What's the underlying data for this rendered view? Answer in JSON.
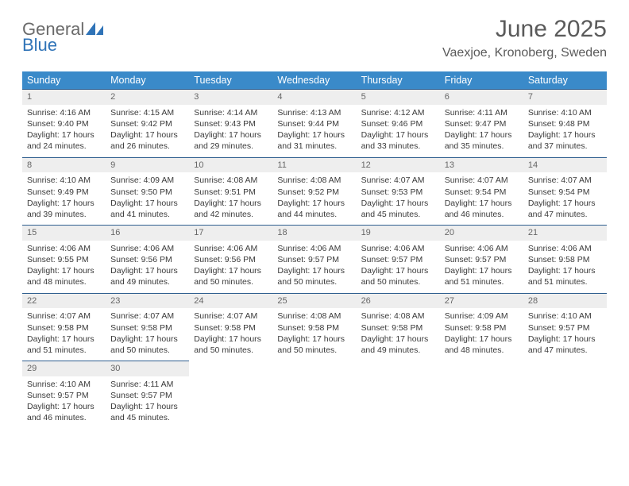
{
  "logo": {
    "text_general": "General",
    "text_blue": "Blue"
  },
  "header": {
    "month_title": "June 2025",
    "location": "Vaexjoe, Kronoberg, Sweden"
  },
  "calendar": {
    "day_names": [
      "Sunday",
      "Monday",
      "Tuesday",
      "Wednesday",
      "Thursday",
      "Friday",
      "Saturday"
    ],
    "header_bg": "#3a8ac9",
    "header_fg": "#ffffff",
    "daynum_bg": "#eeeeee",
    "daynum_border": "#2f5f8f",
    "weeks": [
      [
        {
          "n": "1",
          "sr": "Sunrise: 4:16 AM",
          "ss": "Sunset: 9:40 PM",
          "d1": "Daylight: 17 hours",
          "d2": "and 24 minutes."
        },
        {
          "n": "2",
          "sr": "Sunrise: 4:15 AM",
          "ss": "Sunset: 9:42 PM",
          "d1": "Daylight: 17 hours",
          "d2": "and 26 minutes."
        },
        {
          "n": "3",
          "sr": "Sunrise: 4:14 AM",
          "ss": "Sunset: 9:43 PM",
          "d1": "Daylight: 17 hours",
          "d2": "and 29 minutes."
        },
        {
          "n": "4",
          "sr": "Sunrise: 4:13 AM",
          "ss": "Sunset: 9:44 PM",
          "d1": "Daylight: 17 hours",
          "d2": "and 31 minutes."
        },
        {
          "n": "5",
          "sr": "Sunrise: 4:12 AM",
          "ss": "Sunset: 9:46 PM",
          "d1": "Daylight: 17 hours",
          "d2": "and 33 minutes."
        },
        {
          "n": "6",
          "sr": "Sunrise: 4:11 AM",
          "ss": "Sunset: 9:47 PM",
          "d1": "Daylight: 17 hours",
          "d2": "and 35 minutes."
        },
        {
          "n": "7",
          "sr": "Sunrise: 4:10 AM",
          "ss": "Sunset: 9:48 PM",
          "d1": "Daylight: 17 hours",
          "d2": "and 37 minutes."
        }
      ],
      [
        {
          "n": "8",
          "sr": "Sunrise: 4:10 AM",
          "ss": "Sunset: 9:49 PM",
          "d1": "Daylight: 17 hours",
          "d2": "and 39 minutes."
        },
        {
          "n": "9",
          "sr": "Sunrise: 4:09 AM",
          "ss": "Sunset: 9:50 PM",
          "d1": "Daylight: 17 hours",
          "d2": "and 41 minutes."
        },
        {
          "n": "10",
          "sr": "Sunrise: 4:08 AM",
          "ss": "Sunset: 9:51 PM",
          "d1": "Daylight: 17 hours",
          "d2": "and 42 minutes."
        },
        {
          "n": "11",
          "sr": "Sunrise: 4:08 AM",
          "ss": "Sunset: 9:52 PM",
          "d1": "Daylight: 17 hours",
          "d2": "and 44 minutes."
        },
        {
          "n": "12",
          "sr": "Sunrise: 4:07 AM",
          "ss": "Sunset: 9:53 PM",
          "d1": "Daylight: 17 hours",
          "d2": "and 45 minutes."
        },
        {
          "n": "13",
          "sr": "Sunrise: 4:07 AM",
          "ss": "Sunset: 9:54 PM",
          "d1": "Daylight: 17 hours",
          "d2": "and 46 minutes."
        },
        {
          "n": "14",
          "sr": "Sunrise: 4:07 AM",
          "ss": "Sunset: 9:54 PM",
          "d1": "Daylight: 17 hours",
          "d2": "and 47 minutes."
        }
      ],
      [
        {
          "n": "15",
          "sr": "Sunrise: 4:06 AM",
          "ss": "Sunset: 9:55 PM",
          "d1": "Daylight: 17 hours",
          "d2": "and 48 minutes."
        },
        {
          "n": "16",
          "sr": "Sunrise: 4:06 AM",
          "ss": "Sunset: 9:56 PM",
          "d1": "Daylight: 17 hours",
          "d2": "and 49 minutes."
        },
        {
          "n": "17",
          "sr": "Sunrise: 4:06 AM",
          "ss": "Sunset: 9:56 PM",
          "d1": "Daylight: 17 hours",
          "d2": "and 50 minutes."
        },
        {
          "n": "18",
          "sr": "Sunrise: 4:06 AM",
          "ss": "Sunset: 9:57 PM",
          "d1": "Daylight: 17 hours",
          "d2": "and 50 minutes."
        },
        {
          "n": "19",
          "sr": "Sunrise: 4:06 AM",
          "ss": "Sunset: 9:57 PM",
          "d1": "Daylight: 17 hours",
          "d2": "and 50 minutes."
        },
        {
          "n": "20",
          "sr": "Sunrise: 4:06 AM",
          "ss": "Sunset: 9:57 PM",
          "d1": "Daylight: 17 hours",
          "d2": "and 51 minutes."
        },
        {
          "n": "21",
          "sr": "Sunrise: 4:06 AM",
          "ss": "Sunset: 9:58 PM",
          "d1": "Daylight: 17 hours",
          "d2": "and 51 minutes."
        }
      ],
      [
        {
          "n": "22",
          "sr": "Sunrise: 4:07 AM",
          "ss": "Sunset: 9:58 PM",
          "d1": "Daylight: 17 hours",
          "d2": "and 51 minutes."
        },
        {
          "n": "23",
          "sr": "Sunrise: 4:07 AM",
          "ss": "Sunset: 9:58 PM",
          "d1": "Daylight: 17 hours",
          "d2": "and 50 minutes."
        },
        {
          "n": "24",
          "sr": "Sunrise: 4:07 AM",
          "ss": "Sunset: 9:58 PM",
          "d1": "Daylight: 17 hours",
          "d2": "and 50 minutes."
        },
        {
          "n": "25",
          "sr": "Sunrise: 4:08 AM",
          "ss": "Sunset: 9:58 PM",
          "d1": "Daylight: 17 hours",
          "d2": "and 50 minutes."
        },
        {
          "n": "26",
          "sr": "Sunrise: 4:08 AM",
          "ss": "Sunset: 9:58 PM",
          "d1": "Daylight: 17 hours",
          "d2": "and 49 minutes."
        },
        {
          "n": "27",
          "sr": "Sunrise: 4:09 AM",
          "ss": "Sunset: 9:58 PM",
          "d1": "Daylight: 17 hours",
          "d2": "and 48 minutes."
        },
        {
          "n": "28",
          "sr": "Sunrise: 4:10 AM",
          "ss": "Sunset: 9:57 PM",
          "d1": "Daylight: 17 hours",
          "d2": "and 47 minutes."
        }
      ],
      [
        {
          "n": "29",
          "sr": "Sunrise: 4:10 AM",
          "ss": "Sunset: 9:57 PM",
          "d1": "Daylight: 17 hours",
          "d2": "and 46 minutes."
        },
        {
          "n": "30",
          "sr": "Sunrise: 4:11 AM",
          "ss": "Sunset: 9:57 PM",
          "d1": "Daylight: 17 hours",
          "d2": "and 45 minutes."
        },
        null,
        null,
        null,
        null,
        null
      ]
    ]
  }
}
